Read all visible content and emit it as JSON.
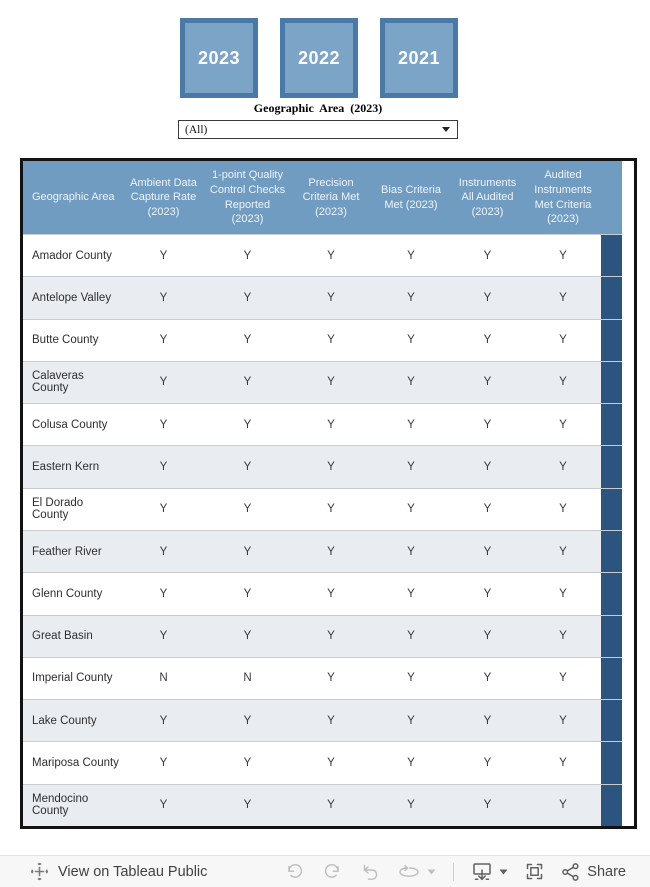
{
  "filters": {
    "year_buttons": [
      {
        "label": "2023"
      },
      {
        "label": "2022"
      },
      {
        "label": "2021"
      }
    ],
    "geo_filter": {
      "label": "Geographic Area (2023)",
      "selected": "(All)"
    }
  },
  "table": {
    "columns": [
      "Geographic Area",
      "Ambient Data Capture Rate (2023)",
      "1-point Quality Control Checks Reported (2023)",
      "Precision Criteria Met (2023)",
      "Bias Criteria Met (2023)",
      "Instruments All Audited (2023)",
      "Audited Instruments Met Criteria (2023)"
    ],
    "rows": [
      {
        "area": "Amador County",
        "values": [
          "Y",
          "Y",
          "Y",
          "Y",
          "Y",
          "Y"
        ]
      },
      {
        "area": "Antelope Valley",
        "values": [
          "Y",
          "Y",
          "Y",
          "Y",
          "Y",
          "Y"
        ]
      },
      {
        "area": "Butte County",
        "values": [
          "Y",
          "Y",
          "Y",
          "Y",
          "Y",
          "Y"
        ]
      },
      {
        "area": "Calaveras County",
        "values": [
          "Y",
          "Y",
          "Y",
          "Y",
          "Y",
          "Y"
        ]
      },
      {
        "area": "Colusa County",
        "values": [
          "Y",
          "Y",
          "Y",
          "Y",
          "Y",
          "Y"
        ]
      },
      {
        "area": "Eastern Kern",
        "values": [
          "Y",
          "Y",
          "Y",
          "Y",
          "Y",
          "Y"
        ]
      },
      {
        "area": "El Dorado County",
        "values": [
          "Y",
          "Y",
          "Y",
          "Y",
          "Y",
          "Y"
        ]
      },
      {
        "area": "Feather River",
        "values": [
          "Y",
          "Y",
          "Y",
          "Y",
          "Y",
          "Y"
        ]
      },
      {
        "area": "Glenn County",
        "values": [
          "Y",
          "Y",
          "Y",
          "Y",
          "Y",
          "Y"
        ]
      },
      {
        "area": "Great Basin",
        "values": [
          "Y",
          "Y",
          "Y",
          "Y",
          "Y",
          "Y"
        ]
      },
      {
        "area": "Imperial County",
        "values": [
          "N",
          "N",
          "Y",
          "Y",
          "Y",
          "Y"
        ]
      },
      {
        "area": "Lake County",
        "values": [
          "Y",
          "Y",
          "Y",
          "Y",
          "Y",
          "Y"
        ]
      },
      {
        "area": "Mariposa County",
        "values": [
          "Y",
          "Y",
          "Y",
          "Y",
          "Y",
          "Y"
        ]
      },
      {
        "area": "Mendocino County",
        "values": [
          "Y",
          "Y",
          "Y",
          "Y",
          "Y",
          "Y"
        ]
      }
    ]
  },
  "toolbar": {
    "view_link_label": "View on Tableau Public",
    "share_label": "Share"
  },
  "colors": {
    "header_blue": "#719cc2",
    "row_alt": "#e9edf2",
    "band_blue": "#2b547f",
    "button_fill": "#7ca4c7",
    "button_border": "#4a79a5",
    "table_border": "#121212"
  }
}
